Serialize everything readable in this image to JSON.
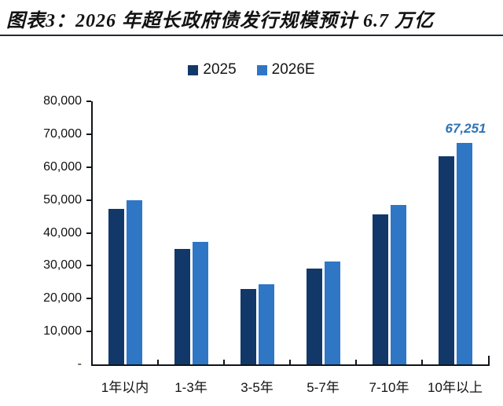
{
  "header": {
    "title": "图表3：2026 年超长政府债发行规模预计 6.7 万亿"
  },
  "colors": {
    "series_2025": "#12386a",
    "series_2026e": "#2f76c5",
    "annotation_blue": "#2e74b5",
    "axis": "#101418",
    "divider": "#1c2f3a"
  },
  "chart_data": {
    "type": "bar",
    "title": "图表3：2026 年超长政府债发行规模预计 6.7 万亿",
    "categories": [
      "1年以内",
      "1-3年",
      "3-5年",
      "5-7年",
      "7-10年",
      "10年以上"
    ],
    "series": [
      {
        "name": "2025",
        "color": "#12386a",
        "values": [
          47200,
          35000,
          23000,
          29200,
          45500,
          63300
        ]
      },
      {
        "name": "2026E",
        "color": "#2f76c5",
        "values": [
          50000,
          37200,
          24400,
          31200,
          48400,
          67251
        ]
      }
    ],
    "xlabel": "",
    "ylabel": "",
    "ylim": [
      0,
      80000
    ],
    "y_tick_labels": [
      "80,000",
      "70,000",
      "60,000",
      "50,000",
      "40,000",
      "30,000",
      "20,000",
      "10,000",
      "-"
    ],
    "grid": false,
    "legend_position": "top-center",
    "annotations": [
      {
        "text": "67,251",
        "series_index": 1,
        "category_index": 5,
        "color": "#2e74b5"
      }
    ]
  }
}
